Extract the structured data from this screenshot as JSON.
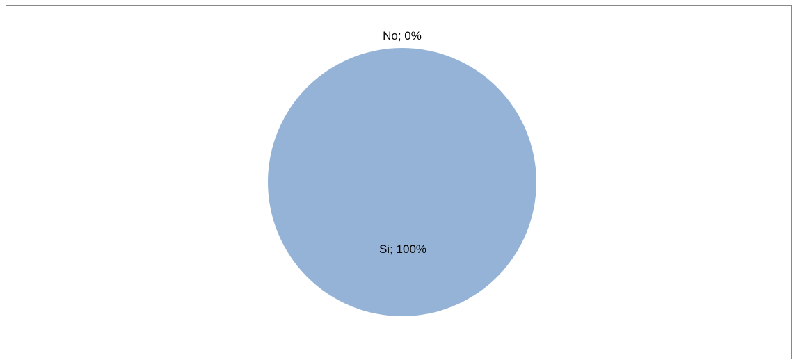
{
  "chart_data": {
    "type": "pie",
    "title": "",
    "slices": [
      {
        "label": "Si",
        "value": 100,
        "display": "Si; 100%",
        "color": "#95B3D7"
      },
      {
        "label": "No",
        "value": 0,
        "display": "No; 0%",
        "color": "#C0504D"
      }
    ],
    "legend": "none",
    "grid": false
  }
}
